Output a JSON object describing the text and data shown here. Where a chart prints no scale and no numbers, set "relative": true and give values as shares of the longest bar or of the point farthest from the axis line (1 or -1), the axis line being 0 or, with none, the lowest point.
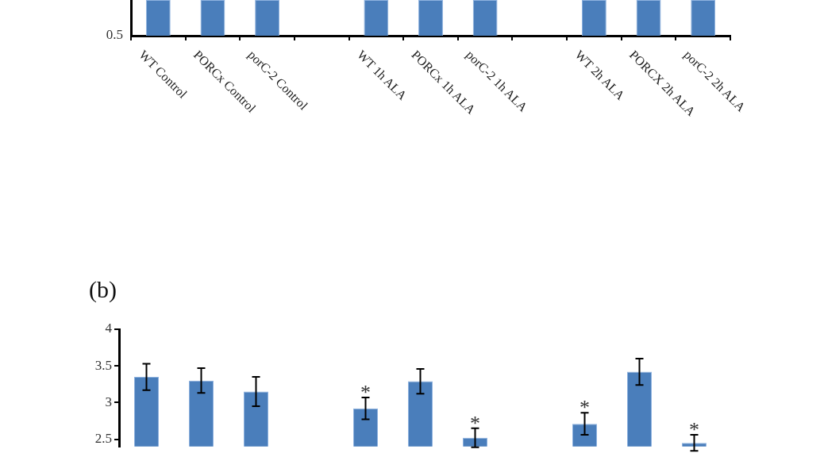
{
  "chart_data": [
    {
      "type": "bar",
      "categories": [
        "WT Control",
        "PORCx Control",
        "porC-2 Control",
        null,
        "WT 1h ALA",
        "PORCx 1h ALA",
        "porC-2 1h ALA",
        null,
        "WT 2h ALA",
        "PORCX 2h ALA",
        "porC-2 2h ALA"
      ],
      "values": [
        1,
        1,
        1,
        null,
        1,
        1,
        1,
        null,
        1,
        1,
        1
      ],
      "relative": true,
      "annotations": [
        "0.5"
      ],
      "color": "#4a7ebb",
      "grid": false,
      "legend": false
    },
    {
      "type": "bar",
      "title": "(b)",
      "categories": [
        null,
        null,
        null,
        null,
        null,
        null,
        null,
        null,
        null,
        null,
        null
      ],
      "values": [
        3.35,
        3.3,
        3.15,
        null,
        2.92,
        3.29,
        2.52,
        null,
        2.71,
        3.42,
        2.45
      ],
      "errors": [
        0.18,
        0.17,
        0.2,
        null,
        0.15,
        0.17,
        0.13,
        null,
        0.15,
        0.18,
        0.11
      ],
      "value_labels": [
        null,
        null,
        null,
        null,
        "*",
        null,
        "*",
        null,
        "*",
        null,
        "*"
      ],
      "color": "#4a7ebb",
      "ylim": [
        2.4,
        4
      ],
      "yticks": [
        2.5,
        3,
        3.5,
        4
      ],
      "tick_labels": "y",
      "grid": false,
      "legend": false
    }
  ]
}
